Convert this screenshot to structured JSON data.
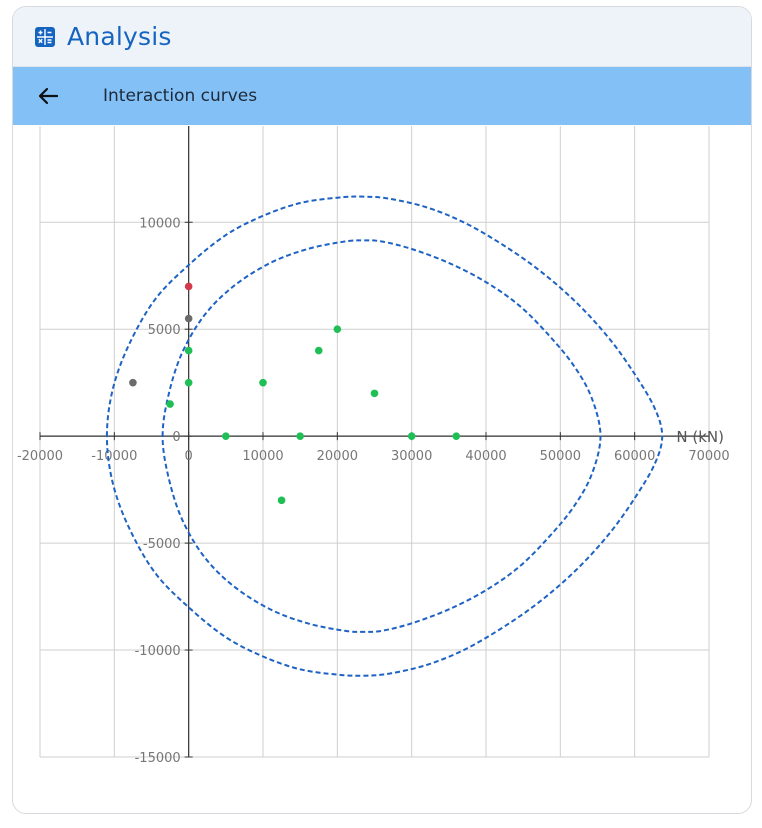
{
  "header": {
    "title": "Analysis",
    "icon": "calculator-icon"
  },
  "toolbar": {
    "title": "Interaction curves",
    "back_icon": "arrow-left-icon"
  },
  "colors": {
    "accent": "#1565c0",
    "toolbar_bg": "#82c0f6",
    "curve": "#1e63c4",
    "point_ok": "#1fbf55",
    "point_gray": "#6b6b6b",
    "point_red": "#d23a4a",
    "grid": "#cfcfcf",
    "axis": "#333333",
    "tick": "#777777"
  },
  "chart_data": {
    "type": "scatter",
    "xlabel": "N (kN)",
    "ylabel": "",
    "xlim": [
      -20000,
      70000
    ],
    "ylim": [
      -15000,
      14500
    ],
    "x_ticks": [
      -20000,
      -10000,
      0,
      10000,
      20000,
      30000,
      40000,
      50000,
      60000,
      70000
    ],
    "y_ticks": [
      10000,
      5000,
      0,
      -5000,
      -10000,
      -15000
    ],
    "grid": true,
    "curves": [
      {
        "style": "dashed",
        "points": [
          [
            -11000,
            0
          ],
          [
            -10200,
            2200
          ],
          [
            -8000,
            4300
          ],
          [
            -4500,
            6400
          ],
          [
            0,
            8000
          ],
          [
            5000,
            9400
          ],
          [
            10000,
            10300
          ],
          [
            15000,
            10900
          ],
          [
            20000,
            11150
          ],
          [
            23500,
            11200
          ],
          [
            27000,
            11100
          ],
          [
            32000,
            10700
          ],
          [
            37000,
            10000
          ],
          [
            42000,
            9000
          ],
          [
            47000,
            7800
          ],
          [
            52000,
            6300
          ],
          [
            56500,
            4600
          ],
          [
            60000,
            2900
          ],
          [
            62700,
            1300
          ],
          [
            63700,
            0
          ],
          [
            62700,
            -1300
          ],
          [
            60000,
            -2900
          ],
          [
            56500,
            -4600
          ],
          [
            52000,
            -6300
          ],
          [
            47000,
            -7800
          ],
          [
            42000,
            -9000
          ],
          [
            37000,
            -10000
          ],
          [
            32000,
            -10700
          ],
          [
            27000,
            -11100
          ],
          [
            23500,
            -11200
          ],
          [
            20000,
            -11150
          ],
          [
            15000,
            -10900
          ],
          [
            10000,
            -10300
          ],
          [
            5000,
            -9400
          ],
          [
            0,
            -8000
          ],
          [
            -4500,
            -6400
          ],
          [
            -8000,
            -4300
          ],
          [
            -10200,
            -2200
          ],
          [
            -11000,
            0
          ]
        ]
      },
      {
        "style": "dashed",
        "points": [
          [
            -3500,
            0
          ],
          [
            -2800,
            1800
          ],
          [
            -1000,
            3800
          ],
          [
            2000,
            5600
          ],
          [
            6000,
            7000
          ],
          [
            11000,
            8100
          ],
          [
            16000,
            8750
          ],
          [
            21000,
            9100
          ],
          [
            23500,
            9150
          ],
          [
            26000,
            9100
          ],
          [
            30000,
            8750
          ],
          [
            35000,
            8100
          ],
          [
            40000,
            7200
          ],
          [
            44500,
            6100
          ],
          [
            48500,
            4700
          ],
          [
            51800,
            3300
          ],
          [
            54200,
            1800
          ],
          [
            55400,
            0
          ],
          [
            54200,
            -1800
          ],
          [
            51800,
            -3300
          ],
          [
            48500,
            -4700
          ],
          [
            44500,
            -6100
          ],
          [
            40000,
            -7200
          ],
          [
            35000,
            -8100
          ],
          [
            30000,
            -8750
          ],
          [
            26000,
            -9100
          ],
          [
            23500,
            -9150
          ],
          [
            21000,
            -9100
          ],
          [
            16000,
            -8750
          ],
          [
            11000,
            -8100
          ],
          [
            6000,
            -7000
          ],
          [
            2000,
            -5600
          ],
          [
            -1000,
            -3800
          ],
          [
            -2800,
            -1800
          ],
          [
            -3500,
            0
          ]
        ]
      }
    ],
    "points": [
      {
        "x": 0,
        "y": 7000,
        "status": "red"
      },
      {
        "x": 0,
        "y": 5500,
        "status": "gray"
      },
      {
        "x": -7500,
        "y": 2500,
        "status": "gray"
      },
      {
        "x": 0,
        "y": 4000,
        "status": "ok"
      },
      {
        "x": 0,
        "y": 2500,
        "status": "ok"
      },
      {
        "x": -2500,
        "y": 1500,
        "status": "ok"
      },
      {
        "x": 5000,
        "y": 0,
        "status": "ok"
      },
      {
        "x": 10000,
        "y": 2500,
        "status": "ok"
      },
      {
        "x": 15000,
        "y": 0,
        "status": "ok"
      },
      {
        "x": 17500,
        "y": 4000,
        "status": "ok"
      },
      {
        "x": 20000,
        "y": 5000,
        "status": "ok"
      },
      {
        "x": 25000,
        "y": 2000,
        "status": "ok"
      },
      {
        "x": 30000,
        "y": 0,
        "status": "ok"
      },
      {
        "x": 36000,
        "y": 0,
        "status": "ok"
      },
      {
        "x": 12500,
        "y": -3000,
        "status": "ok"
      }
    ]
  }
}
